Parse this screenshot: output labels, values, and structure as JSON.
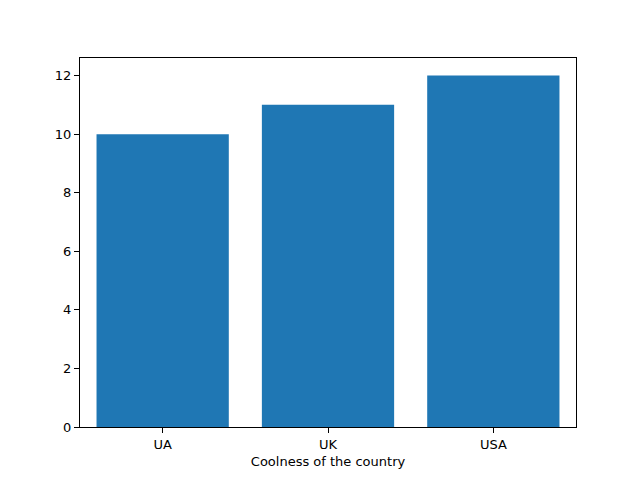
{
  "chart_data": {
    "type": "bar",
    "x_label": "Coolness of the country",
    "categories": [
      "UA",
      "UK",
      "USA"
    ],
    "values": [
      10,
      11,
      12
    ],
    "color": "#1f77b4",
    "ylim": [
      0,
      12.6
    ],
    "yticks": [
      0,
      2,
      4,
      6,
      8,
      10,
      12
    ],
    "grid": false
  }
}
